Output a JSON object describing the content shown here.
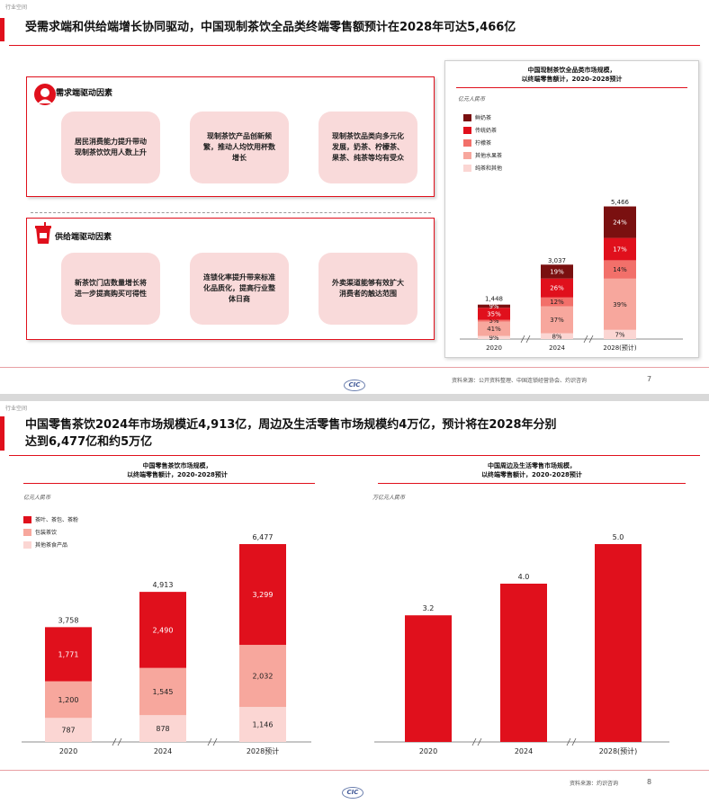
{
  "slide1": {
    "tag": "行业空间",
    "title": "受需求端和供给端增长协同驱动，中国现制茶饮全品类终端零售额预计在2028年可达5,466亿",
    "demand_panel": {
      "title": "需求端驱动因素",
      "icon": "person-silhouette-icon",
      "cards": [
        "居民消费能力提升带动现制茶饮饮用人数上升",
        "现制茶饮产品创新频繁，推动人均饮用杯数增长",
        "现制茶饮品类向多元化发展，奶茶、柠檬茶、果茶、纯茶等均有受众"
      ]
    },
    "supply_panel": {
      "title": "供给端驱动因素",
      "icon": "drink-cup-icon",
      "cards": [
        "新茶饮门店数量增长将进一步提高购买可得性",
        "连锁化率提升带来标准化品质化，提高行业整体日商",
        "外卖渠道能够有效扩大消费者的触达范围"
      ]
    },
    "source": "资料来源：公开资料整理、中国连锁经营协会、灼识咨询",
    "page": "7",
    "logo": "CIC"
  },
  "slide2": {
    "tag": "行业空间",
    "title_line1": "中国零售茶饮2024年市场规模近4,913亿，周边及生活零售市场规模约4万亿，预计将在2028年分别",
    "title_line2": "达到6,477亿和约5万亿",
    "source": "资料来源：灼识咨询",
    "page": "8",
    "logo": "CIC"
  },
  "chart_data": [
    {
      "type": "bar",
      "stacked": true,
      "title": "中国现制茶饮全品类市场规模，\n以终端零售额计，2020-2028预计",
      "unit": "亿元人民币",
      "categories": [
        "2020",
        "2024",
        "2028(预计)"
      ],
      "totals": [
        "1,448",
        "3,037",
        "5,466"
      ],
      "total_values": [
        1448,
        3037,
        5466
      ],
      "series": [
        {
          "name": "纯茶和其他",
          "color": "#fbd6d3",
          "percents": [
            9,
            8,
            7
          ],
          "labels": [
            "9%",
            "8%",
            "7%"
          ]
        },
        {
          "name": "其他水果茶",
          "color": "#f7a79d",
          "percents": [
            41,
            37,
            39
          ],
          "labels": [
            "41%",
            "37%",
            "39%"
          ]
        },
        {
          "name": "柠檬茶",
          "color": "#f2706a",
          "percents": [
            5,
            12,
            14
          ],
          "labels": [
            "5%",
            "12%",
            "14%"
          ]
        },
        {
          "name": "传统奶茶",
          "color": "#e0101c",
          "percents": [
            35,
            26,
            17
          ],
          "labels": [
            "35%",
            "26%",
            "17%"
          ]
        },
        {
          "name": "鲜奶茶",
          "color": "#7a1010",
          "percents": [
            9,
            19,
            24
          ],
          "labels": [
            "9%",
            "19%",
            "24%"
          ]
        }
      ],
      "legend_position": "top-left",
      "axis_breaks": true
    },
    {
      "type": "bar",
      "stacked": true,
      "title": "中国零售茶饮市场规模，\n以终端零售额计，2020-2028预计",
      "unit": "亿元人民币",
      "categories": [
        "2020",
        "2024",
        "2028预计"
      ],
      "totals": [
        "3,758",
        "4,913",
        "6,477"
      ],
      "total_values": [
        3758,
        4913,
        6477
      ],
      "series": [
        {
          "name": "其他茶食产品",
          "color": "#fbd6d3",
          "values": [
            787,
            878,
            1146
          ],
          "labels": [
            "787",
            "878",
            "1,146"
          ]
        },
        {
          "name": "包装茶饮",
          "color": "#f7a79d",
          "values": [
            1200,
            1545,
            2032
          ],
          "labels": [
            "1,200",
            "1,545",
            "2,032"
          ]
        },
        {
          "name": "茶叶、茶包、茶粉",
          "color": "#e0101c",
          "values": [
            1771,
            2490,
            3299
          ],
          "labels": [
            "1,771",
            "2,490",
            "3,299"
          ]
        }
      ],
      "legend_position": "top-left",
      "axis_breaks": true
    },
    {
      "type": "bar",
      "title": "中国周边及生活零售市场规模，\n以终端零售额计，2020-2028预计",
      "unit": "万亿元人民币",
      "categories": [
        "2020",
        "2024",
        "2028(预计)"
      ],
      "values": [
        3.2,
        4.0,
        5.0
      ],
      "labels": [
        "3.2",
        "4.0",
        "5.0"
      ],
      "color": "#e0101c",
      "axis_breaks": true
    }
  ]
}
